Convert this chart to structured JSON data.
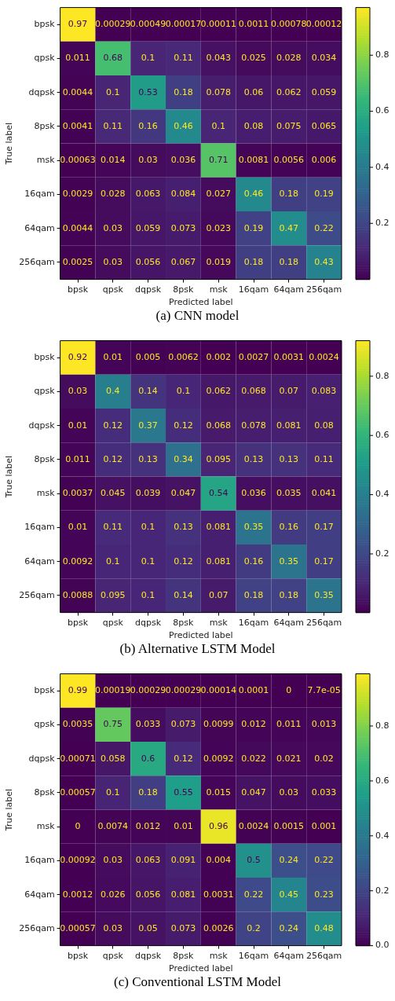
{
  "chart_data": [
    {
      "type": "heatmap",
      "data_labels": true,
      "title": "(a) CNN model",
      "xlabel": "Predicted label",
      "ylabel": "True label",
      "categories": [
        "bpsk",
        "qpsk",
        "dqpsk",
        "8psk",
        "msk",
        "16qam",
        "64qam",
        "256qam"
      ],
      "y_categories": [
        "bpsk",
        "qpsk",
        "dqpsk",
        "8psk",
        "msk",
        "16qam",
        "64qam",
        "256qam"
      ],
      "cells": [
        [
          0.97,
          0.00029,
          0.00049,
          0.00017,
          0.00011,
          0.0011,
          0.00078,
          0.00012
        ],
        [
          0.011,
          0.68,
          0.1,
          0.11,
          0.043,
          0.025,
          0.028,
          0.034
        ],
        [
          0.0044,
          0.1,
          0.53,
          0.18,
          0.078,
          0.06,
          0.062,
          0.059
        ],
        [
          0.0041,
          0.11,
          0.16,
          0.46,
          0.1,
          0.08,
          0.075,
          0.065
        ],
        [
          0.00063,
          0.014,
          0.03,
          0.036,
          0.71,
          0.0081,
          0.0056,
          0.006
        ],
        [
          0.0029,
          0.028,
          0.063,
          0.084,
          0.027,
          0.46,
          0.18,
          0.19
        ],
        [
          0.0044,
          0.03,
          0.059,
          0.073,
          0.023,
          0.19,
          0.47,
          0.22
        ],
        [
          0.0025,
          0.03,
          0.056,
          0.067,
          0.019,
          0.18,
          0.18,
          0.43
        ]
      ],
      "clim": [
        0.00011,
        0.97
      ],
      "cticks": [
        0.2,
        0.4,
        0.6,
        0.8
      ]
    },
    {
      "type": "heatmap",
      "data_labels": true,
      "title": "(b) Alternative LSTM Model",
      "xlabel": "Predicted label",
      "ylabel": "True label",
      "categories": [
        "bpsk",
        "qpsk",
        "dqpsk",
        "8psk",
        "msk",
        "16qam",
        "64qam",
        "256qam"
      ],
      "y_categories": [
        "bpsk",
        "qpsk",
        "dqpsk",
        "8psk",
        "msk",
        "16qam",
        "64qam",
        "256qam"
      ],
      "cells": [
        [
          0.92,
          0.01,
          0.005,
          0.0062,
          0.002,
          0.0027,
          0.0031,
          0.0024
        ],
        [
          0.03,
          0.4,
          0.14,
          0.1,
          0.062,
          0.068,
          0.07,
          0.083
        ],
        [
          0.01,
          0.12,
          0.37,
          0.12,
          0.068,
          0.078,
          0.081,
          0.08
        ],
        [
          0.011,
          0.12,
          0.13,
          0.34,
          0.095,
          0.13,
          0.13,
          0.11
        ],
        [
          0.0037,
          0.045,
          0.039,
          0.047,
          0.54,
          0.036,
          0.035,
          0.041
        ],
        [
          0.01,
          0.11,
          0.1,
          0.13,
          0.081,
          0.35,
          0.16,
          0.17
        ],
        [
          0.0092,
          0.1,
          0.1,
          0.12,
          0.081,
          0.16,
          0.35,
          0.17
        ],
        [
          0.0088,
          0.095,
          0.1,
          0.14,
          0.07,
          0.18,
          0.18,
          0.35
        ]
      ],
      "clim": [
        0.002,
        0.92
      ],
      "cticks": [
        0.2,
        0.4,
        0.6,
        0.8
      ]
    },
    {
      "type": "heatmap",
      "data_labels": true,
      "title": "(c) Conventional LSTM Model",
      "xlabel": "Predicted label",
      "ylabel": "True label",
      "categories": [
        "bpsk",
        "qpsk",
        "dqpsk",
        "8psk",
        "msk",
        "16qam",
        "64qam",
        "256qam"
      ],
      "y_categories": [
        "bpsk",
        "qpsk",
        "dqpsk",
        "8psk",
        "msk",
        "16qam",
        "64qam",
        "256qam"
      ],
      "cells": [
        [
          0.99,
          0.00019,
          0.00029,
          0.00029,
          0.00014,
          0.0001,
          0,
          7.7e-05
        ],
        [
          0.0035,
          0.75,
          0.033,
          0.073,
          0.0099,
          0.012,
          0.011,
          0.013
        ],
        [
          0.00071,
          0.058,
          0.6,
          0.12,
          0.0092,
          0.022,
          0.021,
          0.02
        ],
        [
          0.00057,
          0.1,
          0.18,
          0.55,
          0.015,
          0.047,
          0.03,
          0.033
        ],
        [
          0,
          0.0074,
          0.012,
          0.01,
          0.96,
          0.0024,
          0.0015,
          0.001
        ],
        [
          0.00092,
          0.03,
          0.063,
          0.091,
          0.004,
          0.5,
          0.24,
          0.22
        ],
        [
          0.0012,
          0.026,
          0.056,
          0.081,
          0.0031,
          0.22,
          0.45,
          0.23
        ],
        [
          0.00057,
          0.03,
          0.05,
          0.073,
          0.0026,
          0.2,
          0.24,
          0.48
        ]
      ],
      "cell_labels": [
        [
          "0.99",
          "0.00019",
          "0.00029",
          "0.00029",
          "0.00014",
          "0.0001",
          "0",
          "7.7e-05"
        ],
        [
          "0.0035",
          "0.75",
          "0.033",
          "0.073",
          "0.0099",
          "0.012",
          "0.011",
          "0.013"
        ],
        [
          "0.00071",
          "0.058",
          "0.6",
          "0.12",
          "0.0092",
          "0.022",
          "0.021",
          "0.02"
        ],
        [
          "0.00057",
          "0.1",
          "0.18",
          "0.55",
          "0.015",
          "0.047",
          "0.03",
          "0.033"
        ],
        [
          "0",
          "0.0074",
          "0.012",
          "0.01",
          "0.96",
          "0.0024",
          "0.0015",
          "0.001"
        ],
        [
          "0.00092",
          "0.03",
          "0.063",
          "0.091",
          "0.004",
          "0.5",
          "0.24",
          "0.22"
        ],
        [
          "0.0012",
          "0.026",
          "0.056",
          "0.081",
          "0.0031",
          "0.22",
          "0.45",
          "0.23"
        ],
        [
          "0.00057",
          "0.03",
          "0.05",
          "0.073",
          "0.0026",
          "0.2",
          "0.24",
          "0.48"
        ]
      ],
      "clim": [
        0,
        0.99
      ],
      "cticks": [
        {
          "value": 0,
          "label": "0.0"
        },
        0.2,
        0.4,
        0.6,
        0.8
      ]
    }
  ]
}
